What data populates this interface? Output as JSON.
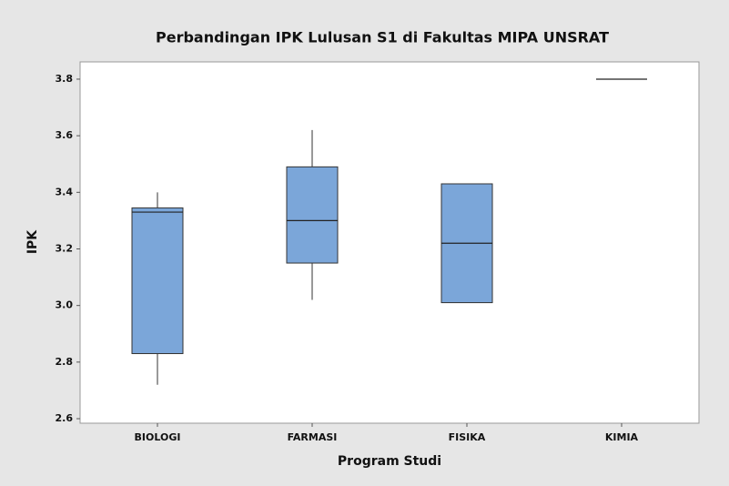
{
  "chart_data": {
    "type": "box",
    "title": "Perbandingan IPK Lulusan S1 di Fakultas MIPA UNSRAT",
    "x_label": "Program Studi",
    "y_label": "IPK",
    "categories": [
      "BIOLOGI",
      "FARMASI",
      "FISIKA",
      "KIMIA"
    ],
    "boxes": [
      {
        "min": 2.72,
        "q1": 2.83,
        "median": 3.33,
        "q3": 3.345,
        "max": 3.4
      },
      {
        "min": 3.02,
        "q1": 3.15,
        "median": 3.3,
        "q3": 3.49,
        "max": 3.62
      },
      {
        "min": 3.01,
        "q1": 3.01,
        "median": 3.22,
        "q3": 3.43,
        "max": 3.43
      },
      {
        "min": 3.8,
        "q1": 3.8,
        "median": 3.8,
        "q3": 3.8,
        "max": 3.8
      }
    ],
    "color": "#7ba6d9",
    "ylim": [
      2.584,
      3.861
    ],
    "yticks": [
      2.6,
      2.8,
      {
        "value": 3,
        "label": "3.0"
      },
      3.2,
      3.4,
      3.6,
      3.8
    ]
  }
}
